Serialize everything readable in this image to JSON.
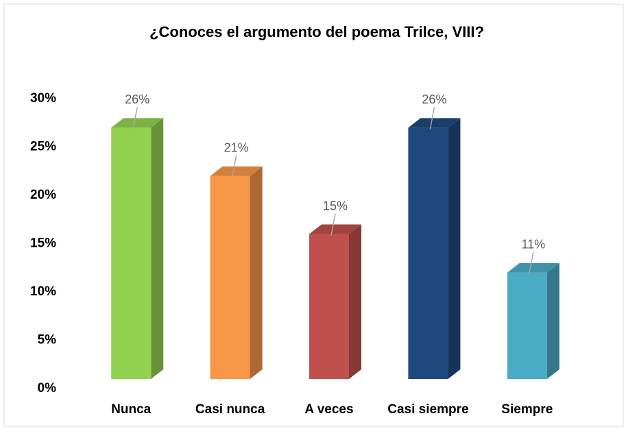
{
  "chart_data": {
    "type": "bar3d",
    "title": "¿Conoces el argumento del poema Trilce, VIII?",
    "categories": [
      "Nunca",
      "Casi nunca",
      "A veces",
      "Casi siempre",
      "Siempre"
    ],
    "values": [
      26,
      21,
      15,
      26,
      11
    ],
    "value_labels": [
      "26%",
      "21%",
      "15%",
      "26%",
      "11%"
    ],
    "colors": [
      "#92d050",
      "#f79646",
      "#c0504d",
      "#1f497d",
      "#4bacc6"
    ],
    "ylim": [
      0,
      30
    ],
    "yticks": [
      {
        "value": 0,
        "label": "0%"
      },
      {
        "value": 5,
        "label": "5%"
      },
      {
        "value": 10,
        "label": "10%"
      },
      {
        "value": 15,
        "label": "15%"
      },
      {
        "value": 20,
        "label": "20%"
      },
      {
        "value": 25,
        "label": "25%"
      },
      {
        "value": 30,
        "label": "30%"
      }
    ],
    "grid": false
  }
}
